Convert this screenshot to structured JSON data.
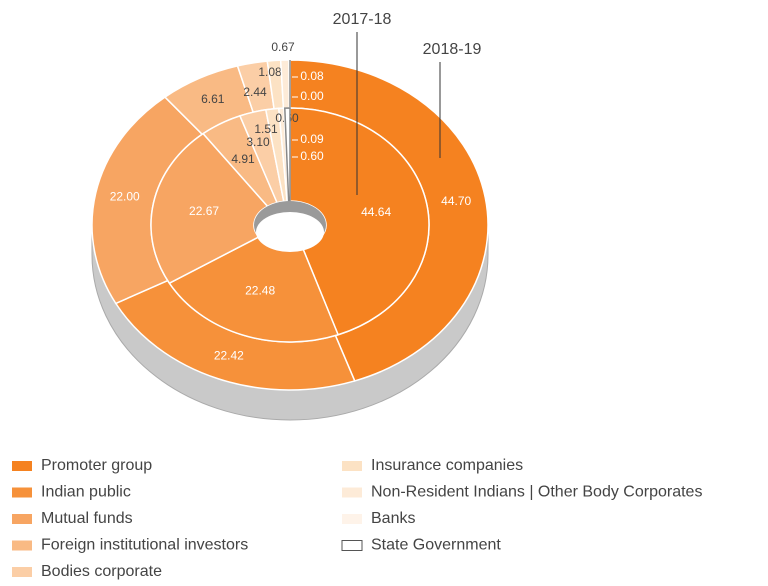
{
  "chart_data": {
    "type": "donut",
    "categories": [
      "Promoter group",
      "Indian public",
      "Mutual funds",
      "Foreign institutional investors",
      "Bodies corporate",
      "Insurance companies",
      "Non-Resident Indians | Other Body Corporates",
      "Banks",
      "State Government"
    ],
    "colors": [
      "#f58220",
      "#f6913a",
      "#f7a562",
      "#f9ba84",
      "#fbcea6",
      "#fce2c4",
      "#fdebd8",
      "#fef3e9",
      "#ffffff"
    ],
    "series": [
      {
        "name": "2018-19",
        "values": [
          44.7,
          22.42,
          22.0,
          6.61,
          2.44,
          1.08,
          0.67,
          0.08,
          0.0
        ],
        "value_labels": [
          "44.70",
          "22.42",
          "22.00",
          "6.61",
          "2.44",
          "1.08",
          "0.67",
          "0.08",
          "0.00"
        ]
      },
      {
        "name": "2017-18",
        "values": [
          44.64,
          22.48,
          22.67,
          4.91,
          3.1,
          1.51,
          0.6,
          0.09,
          0.6
        ],
        "value_labels": [
          "44.64",
          "22.48",
          "22.67",
          "4.91",
          "3.10",
          "1.51",
          "0.60",
          "0.09",
          "0.60"
        ]
      }
    ]
  }
}
